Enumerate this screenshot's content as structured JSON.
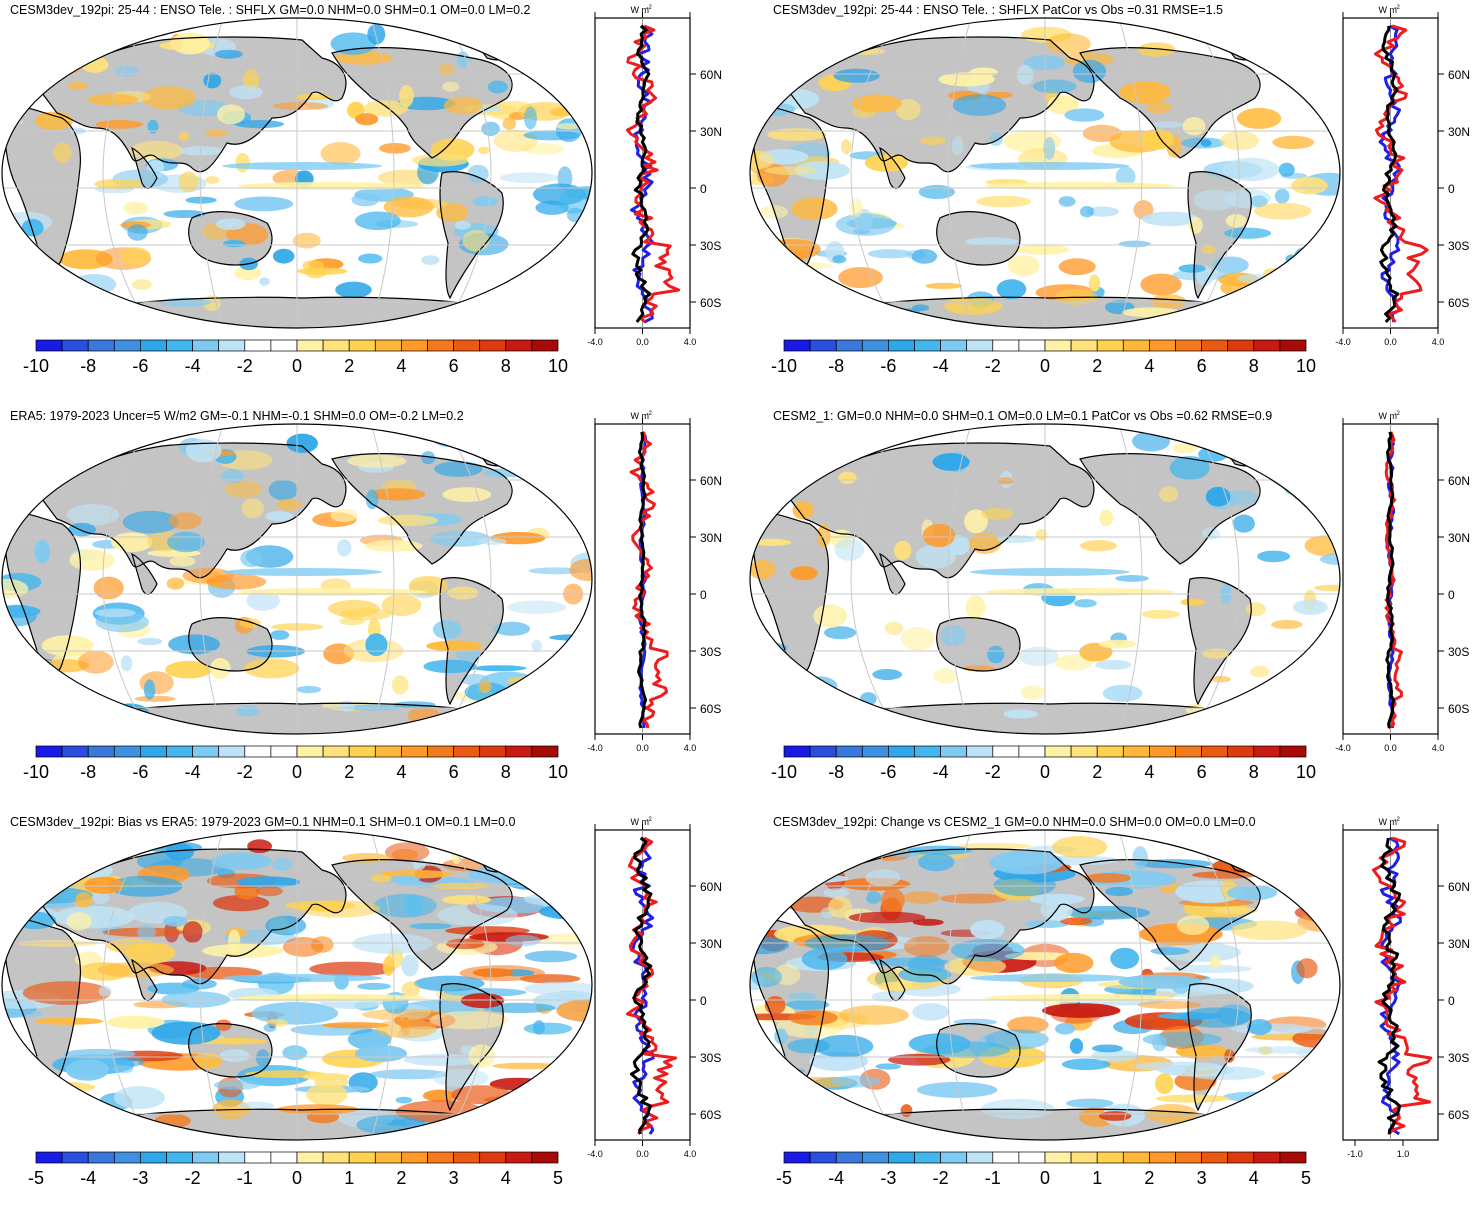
{
  "colors": {
    "land": "#c4c4c4",
    "ocean": "#ffffff",
    "blue_line": "#1f1fe6",
    "red_line": "#ee1c1c",
    "black_line": "#000000",
    "grid": "#c8c8c8"
  },
  "colorbar": {
    "colors": [
      "#1a1ae6",
      "#2a4fe0",
      "#3a78dc",
      "#3f90e0",
      "#2fa7e8",
      "#44b6ee",
      "#7fcaf2",
      "#bfe3f6",
      "#ffffff",
      "#ffffff",
      "#fff2a6",
      "#ffe27a",
      "#ffd24f",
      "#ffb93a",
      "#ff9a2a",
      "#f57a1e",
      "#ea5a14",
      "#de3a10",
      "#c81a12",
      "#a80a0a"
    ],
    "labels_wide": [
      "-10",
      "-8",
      "-6",
      "-4",
      "-2",
      "0",
      "2",
      "4",
      "6",
      "8",
      "10"
    ],
    "labels_narrow": [
      "-5",
      "-4",
      "-3",
      "-2",
      "-1",
      "0",
      "1",
      "2",
      "3",
      "4",
      "5"
    ]
  },
  "profile": {
    "unit_label": "W m",
    "unit_sup": "-2",
    "lat_labels": [
      "60N",
      "30N",
      "0",
      "30S",
      "60S"
    ],
    "xticks_default": [
      "-4.0",
      "0.0",
      "4.0"
    ],
    "xticks_change": [
      "-1.0",
      "1.0"
    ]
  },
  "panels": [
    {
      "title": "CESM3dev_192pi: 25-44 : ENSO Tele. : SHFLX GM=0.0 NHM=0.0 SHM=0.1 OM=0.0 LM=0.2",
      "cbar": "wide",
      "xticks": "default",
      "lines": [
        "blue",
        "red",
        "black"
      ],
      "amp": [
        1.0,
        1.6,
        0.7
      ]
    },
    {
      "title": "CESM3dev_192pi: 25-44 : ENSO Tele. : SHFLX PatCor vs Obs =0.31 RMSE=1.5",
      "cbar": "wide",
      "xticks": "default",
      "lines": [
        "blue",
        "red",
        "black"
      ],
      "amp": [
        1.0,
        1.6,
        0.7
      ]
    },
    {
      "title": "ERA5: 1979-2023 Uncer=5 W/m2 GM=-0.1 NHM=-0.1 SHM=0.0 OM=-0.2 LM=0.2",
      "cbar": "wide",
      "xticks": "default",
      "lines": [
        "blue",
        "red",
        "black"
      ],
      "amp": [
        0.3,
        1.2,
        0.3
      ]
    },
    {
      "title": "CESM2_1: GM=0.0 NHM=0.0 SHM=0.1 OM=0.0 LM=0.1 PatCor vs Obs =0.62 RMSE=0.9",
      "cbar": "wide",
      "xticks": "default",
      "lines": [
        "blue",
        "red",
        "black"
      ],
      "amp": [
        0.3,
        0.5,
        0.3
      ]
    },
    {
      "title": "CESM3dev_192pi: Bias vs ERA5: 1979-2023 GM=0.1 NHM=0.1 SHM=0.1 OM=0.1 LM=0.0",
      "cbar": "narrow",
      "xticks": "default",
      "lines": [
        "blue",
        "red",
        "black"
      ],
      "amp": [
        1.0,
        1.4,
        0.8
      ]
    },
    {
      "title": "CESM3dev_192pi: Change vs CESM2_1 GM=0.0 NHM=0.0 SHM=0.0 OM=0.0 LM=0.0",
      "cbar": "narrow",
      "xticks": "change",
      "lines": [
        "blue",
        "red",
        "black"
      ],
      "amp": [
        1.0,
        1.6,
        0.9
      ]
    }
  ],
  "chart_data": [
    {
      "type": "heatmap",
      "title": "CESM3dev_192pi: 25-44 : ENSO Tele. : SHFLX GM=0.0 NHM=0.0 SHM=0.1 OM=0.0 LM=0.2",
      "colorbar_range": [
        -10,
        10
      ],
      "ylabel": "W m-2",
      "xlim": [
        -4.0,
        4.0
      ]
    },
    {
      "type": "heatmap",
      "title": "CESM3dev_192pi: 25-44 : ENSO Tele. : SHFLX PatCor vs Obs =0.31 RMSE=1.5",
      "colorbar_range": [
        -10,
        10
      ],
      "xlim": [
        -4.0,
        4.0
      ]
    },
    {
      "type": "heatmap",
      "title": "ERA5: 1979-2023 Uncer=5 W/m2 GM=-0.1 NHM=-0.1 SHM=0.0 OM=-0.2 LM=0.2",
      "colorbar_range": [
        -10,
        10
      ],
      "xlim": [
        -4.0,
        4.0
      ]
    },
    {
      "type": "heatmap",
      "title": "CESM2_1: GM=0.0 NHM=0.0 SHM=0.1 OM=0.0 LM=0.1 PatCor vs Obs =0.62 RMSE=0.9",
      "colorbar_range": [
        -10,
        10
      ],
      "xlim": [
        -4.0,
        4.0
      ]
    },
    {
      "type": "heatmap",
      "title": "CESM3dev_192pi: Bias vs ERA5: 1979-2023 GM=0.1 NHM=0.1 SHM=0.1 OM=0.1 LM=0.0",
      "colorbar_range": [
        -5,
        5
      ],
      "xlim": [
        -4.0,
        4.0
      ]
    },
    {
      "type": "heatmap",
      "title": "CESM3dev_192pi: Change vs CESM2_1 GM=0.0 NHM=0.0 SHM=0.0 OM=0.0 LM=0.0",
      "colorbar_range": [
        -5,
        5
      ],
      "xlim": [
        -2.0,
        2.0
      ]
    }
  ]
}
